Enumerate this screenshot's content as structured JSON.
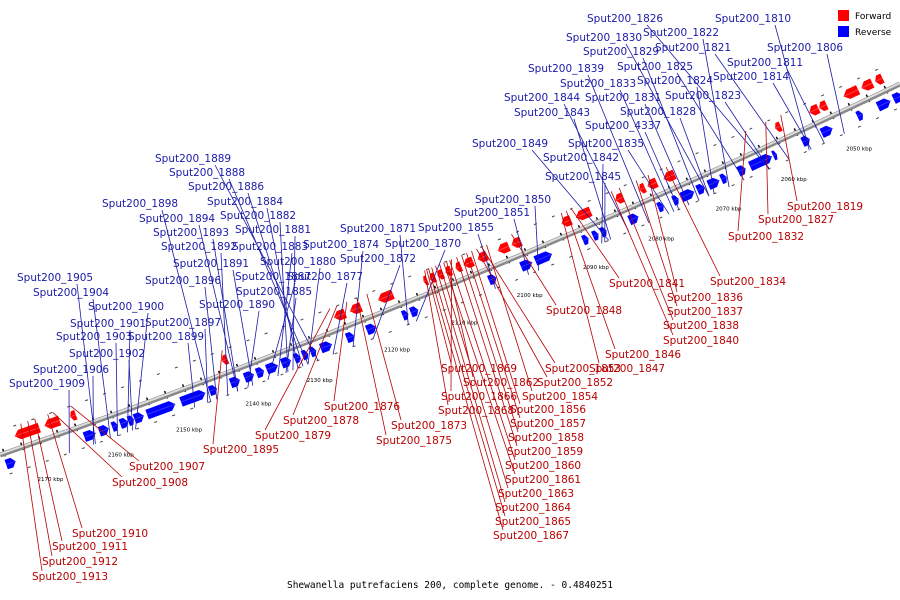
{
  "caption": "Shewanella putrefaciens 200, complete genome. - 0.4840251",
  "legend": [
    {
      "label": "Forward",
      "color": "#ff0000"
    },
    {
      "label": "Reverse",
      "color": "#0000ff"
    }
  ],
  "kbp_marks": [
    "2050 kbp",
    "2060 kbp",
    "2070 kbp",
    "2080 kbp",
    "2090 kbp",
    "2100 kbp",
    "2110 kbp",
    "2120 kbp",
    "2130 kbp",
    "2140 kbp",
    "2150 kbp",
    "2160 kbp",
    "2170 kbp"
  ],
  "forward_labels": [
    "Sput200_1819",
    "Sput200_1827",
    "Sput200_1832",
    "Sput200_1834",
    "Sput200_1836",
    "Sput200_1837",
    "Sput200_1838",
    "Sput200_1840",
    "Sput200_1841",
    "Sput200_1846",
    "Sput200_1847",
    "Sput200_1848",
    "Sput200_1852",
    "Sput200_1853",
    "Sput200_1854",
    "Sput200_1856",
    "Sput200_1857",
    "Sput200_1858",
    "Sput200_1859",
    "Sput200_1860",
    "Sput200_1861",
    "Sput200_1862",
    "Sput200_1863",
    "Sput200_1864",
    "Sput200_1865",
    "Sput200_1866",
    "Sput200_1867",
    "Sput200_1868",
    "Sput200_1869",
    "Sput200_1873",
    "Sput200_1875",
    "Sput200_1876",
    "Sput200_1878",
    "Sput200_1879",
    "Sput200_1895",
    "Sput200_1907",
    "Sput200_1908",
    "Sput200_1910",
    "Sput200_1911",
    "Sput200_1912",
    "Sput200_1913"
  ],
  "reverse_labels": [
    "Sput200_1826",
    "Sput200_1810",
    "Sput200_1822",
    "Sput200_1830",
    "Sput200_1821",
    "Sput200_1829",
    "Sput200_1806",
    "Sput200_1825",
    "Sput200_1811",
    "Sput200_1839",
    "Sput200_1824",
    "Sput200_1814",
    "Sput200_1833",
    "Sput200_1844",
    "Sput200_1831",
    "Sput200_1823",
    "Sput200_1843",
    "Sput200_1828",
    "Sput200_4337",
    "Sput200_1849",
    "Sput200_1835",
    "Sput200_1842",
    "Sput200_1845",
    "Sput200_1889",
    "Sput200_1888",
    "Sput200_1886",
    "Sput200_1898",
    "Sput200_1884",
    "Sput200_1850",
    "Sput200_1894",
    "Sput200_1882",
    "Sput200_1851",
    "Sput200_1893",
    "Sput200_1881",
    "Sput200_1871",
    "Sput200_1855",
    "Sput200_1892",
    "Sput200_1883",
    "Sput200_1874",
    "Sput200_1870",
    "Sput200_1891",
    "Sput200_1880",
    "Sput200_1872",
    "Sput200_1905",
    "Sput200_1896",
    "Sput200_1887",
    "Sput200_1877",
    "Sput200_1904",
    "Sput200_1885",
    "Sput200_1890",
    "Sput200_1900",
    "Sput200_1897",
    "Sput200_1901",
    "Sput200_1899",
    "Sput200_1903",
    "Sput200_1902",
    "Sput200_1906",
    "Sput200_1909"
  ]
}
